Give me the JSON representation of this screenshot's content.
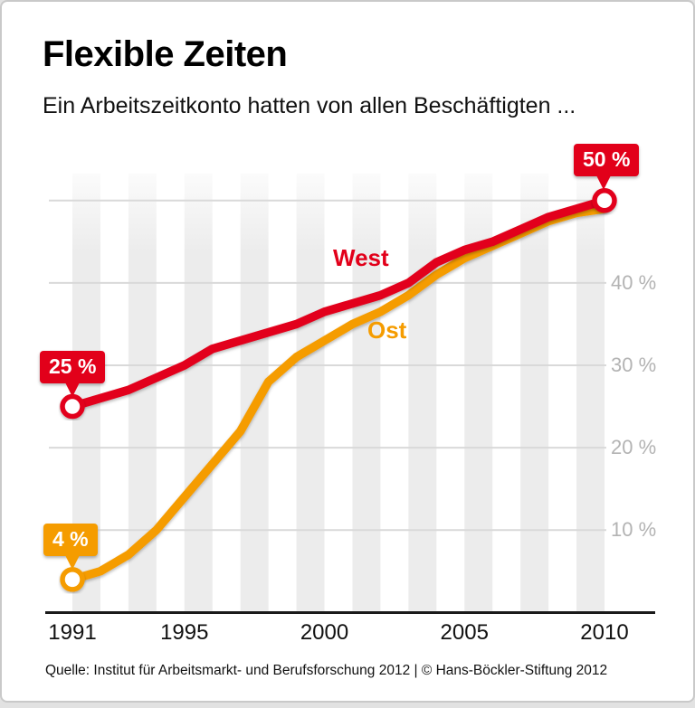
{
  "header": {
    "title": "Flexible Zeiten",
    "subtitle": "Ein Arbeitszeitkonto hatten von allen Beschäftigten ..."
  },
  "chart_data": {
    "type": "line",
    "x": [
      1991,
      1992,
      1993,
      1994,
      1995,
      1996,
      1997,
      1998,
      1999,
      2000,
      2001,
      2002,
      2003,
      2004,
      2005,
      2006,
      2007,
      2008,
      2009,
      2010
    ],
    "series": [
      {
        "name": "West",
        "color": "#e2001a",
        "values": [
          25,
          26,
          27,
          28.5,
          30,
          32,
          33,
          34,
          35,
          36.5,
          37.5,
          38.5,
          40,
          42.5,
          44,
          45,
          46.5,
          48,
          49,
          50
        ]
      },
      {
        "name": "Ost",
        "color": "#f59c00",
        "values": [
          4,
          5,
          7,
          10,
          14,
          18,
          22,
          28,
          31,
          33,
          35,
          36.5,
          38.5,
          41,
          43,
          44.5,
          46,
          47.5,
          48.5,
          49
        ]
      }
    ],
    "annotations": [
      {
        "label": "25 %",
        "series": "West",
        "year": 1991,
        "value": 25
      },
      {
        "label": "50 %",
        "series": "West",
        "year": 2010,
        "value": 50
      },
      {
        "label": "4 %",
        "series": "Ost",
        "year": 1991,
        "value": 4
      }
    ],
    "x_ticks": [
      1991,
      1995,
      2000,
      2005,
      2010
    ],
    "y_ticks": [
      {
        "value": 40,
        "label": "40 %"
      },
      {
        "value": 30,
        "label": "30 %"
      },
      {
        "value": 20,
        "label": "20 %"
      },
      {
        "value": 10,
        "label": "10 %"
      }
    ],
    "grid_values": [
      10,
      20,
      30,
      40,
      50
    ],
    "ylim": [
      0,
      52
    ],
    "legend_position": "inline-labels",
    "grid": "horizontal gray lines + alternating vertical year stripes"
  },
  "colors": {
    "west": "#e2001a",
    "ost": "#f59c00",
    "gridline": "#d9d9d9",
    "tick_label": "#b3b3b3",
    "axis": "#1a1a1a",
    "stripe": "#ececec"
  },
  "footer": {
    "source": "Quelle: Institut für Arbeitsmarkt- und Berufsforschung 2012 | © Hans-Böckler-Stiftung 2012"
  }
}
